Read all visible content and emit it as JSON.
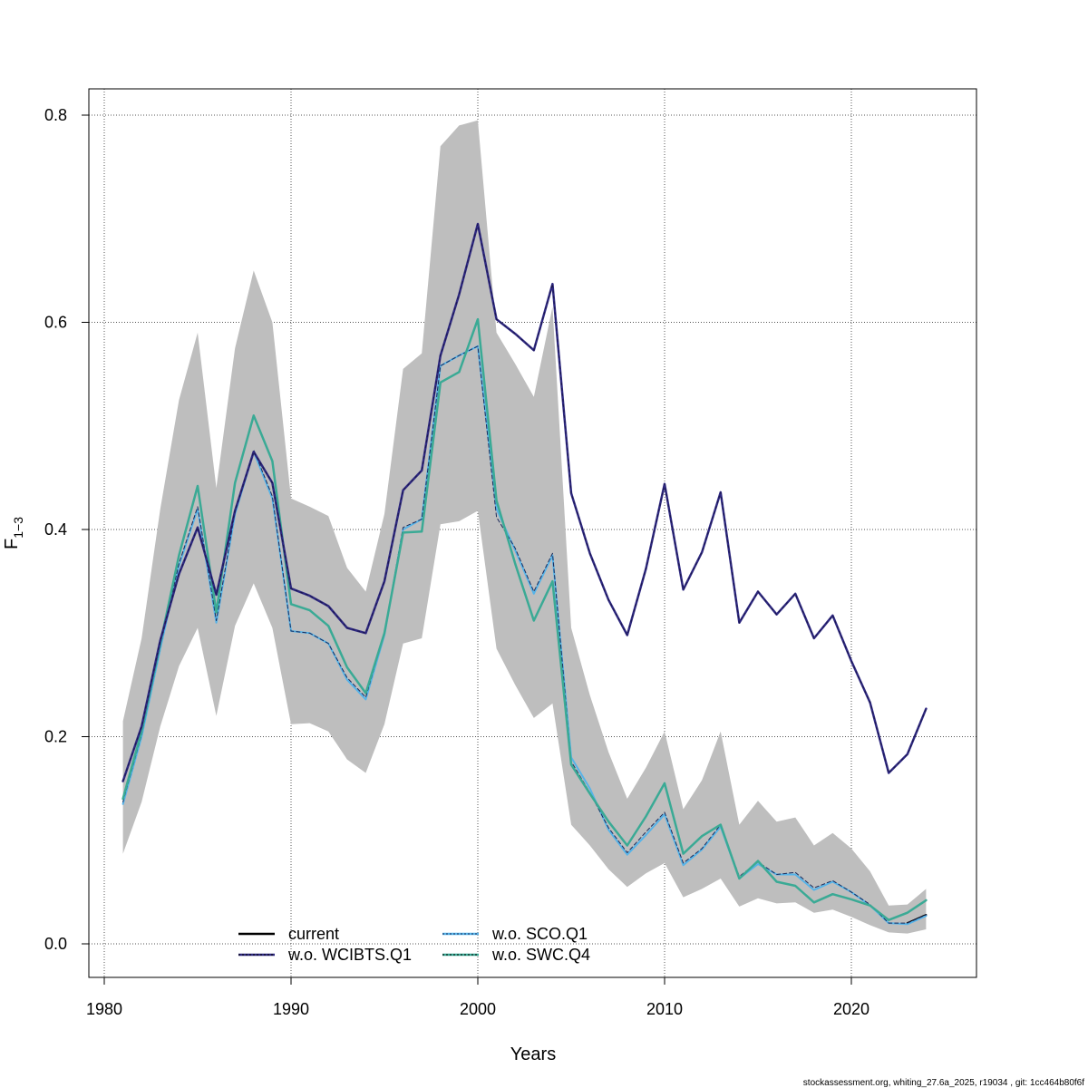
{
  "chart_data": {
    "type": "line",
    "xlabel": "Years",
    "ylabel_main": "F",
    "ylabel_sub": "1−3",
    "xlim": [
      1980,
      2025
    ],
    "ylim": [
      0,
      0.8
    ],
    "x_ticks": [
      1980,
      1990,
      2000,
      2010,
      2020
    ],
    "y_ticks": [
      0.0,
      0.2,
      0.4,
      0.6,
      0.8
    ],
    "y_tick_labels": [
      "0.0",
      "0.2",
      "0.4",
      "0.6",
      "0.8"
    ],
    "grid": true,
    "legend_position": "bottom",
    "x": [
      1981,
      1982,
      1983,
      1984,
      1985,
      1986,
      1987,
      1988,
      1989,
      1990,
      1991,
      1992,
      1993,
      1994,
      1995,
      1996,
      1997,
      1998,
      1999,
      2000,
      2001,
      2002,
      2003,
      2004,
      2005,
      2006,
      2007,
      2008,
      2009,
      2010,
      2011,
      2012,
      2013,
      2014,
      2015,
      2016,
      2017,
      2018,
      2019,
      2020,
      2021,
      2022,
      2023,
      2024
    ],
    "band": {
      "color": "#bebebe",
      "upper": [
        0.215,
        0.295,
        0.42,
        0.525,
        0.59,
        0.44,
        0.575,
        0.65,
        0.6,
        0.43,
        0.422,
        0.413,
        0.363,
        0.34,
        0.415,
        0.555,
        0.57,
        0.77,
        0.79,
        0.795,
        0.59,
        0.56,
        0.528,
        0.615,
        0.305,
        0.24,
        0.185,
        0.14,
        0.17,
        0.205,
        0.13,
        0.158,
        0.205,
        0.115,
        0.138,
        0.118,
        0.122,
        0.095,
        0.107,
        0.092,
        0.07,
        0.037,
        0.038,
        0.053
      ],
      "lower": [
        0.087,
        0.137,
        0.21,
        0.268,
        0.305,
        0.22,
        0.307,
        0.348,
        0.305,
        0.212,
        0.213,
        0.205,
        0.178,
        0.165,
        0.212,
        0.29,
        0.295,
        0.405,
        0.408,
        0.418,
        0.285,
        0.25,
        0.218,
        0.232,
        0.115,
        0.095,
        0.072,
        0.055,
        0.068,
        0.078,
        0.045,
        0.053,
        0.063,
        0.036,
        0.044,
        0.039,
        0.04,
        0.03,
        0.033,
        0.026,
        0.018,
        0.011,
        0.01,
        0.014
      ]
    },
    "series": [
      {
        "name": "current",
        "color": "#000000",
        "dash": "",
        "width": 2,
        "x": [
          2023,
          2024
        ],
        "values": [
          0.02,
          0.028
        ]
      },
      {
        "name": "w.o. SCO.Q1",
        "color": "#56b4e9",
        "dash": "",
        "width": 2,
        "values": [
          0.135,
          0.2,
          0.285,
          0.365,
          0.42,
          0.31,
          0.415,
          0.475,
          0.43,
          0.302,
          0.3,
          0.29,
          0.255,
          0.236,
          0.298,
          0.4,
          0.41,
          0.558,
          0.568,
          0.577,
          0.42,
          0.38,
          0.338,
          0.375,
          0.18,
          0.15,
          0.11,
          0.086,
          0.105,
          0.125,
          0.076,
          0.091,
          0.113,
          0.063,
          0.077,
          0.067,
          0.067,
          0.052,
          0.06,
          0.05,
          0.037,
          0.02,
          0.019,
          0.027
        ]
      },
      {
        "name": "w.o. SCO.Q1 overlay",
        "color": "#1a2a5a",
        "dash": "4,3",
        "width": 1,
        "values": [
          0.137,
          0.202,
          0.287,
          0.367,
          0.422,
          0.312,
          0.417,
          0.477,
          0.432,
          0.302,
          0.3,
          0.29,
          0.257,
          0.238,
          0.3,
          0.402,
          0.41,
          0.558,
          0.568,
          0.577,
          0.412,
          0.382,
          0.34,
          0.377,
          0.176,
          0.146,
          0.112,
          0.088,
          0.108,
          0.127,
          0.078,
          0.092,
          0.115,
          0.065,
          0.079,
          0.067,
          0.069,
          0.054,
          0.061,
          0.05,
          0.038,
          0.02,
          0.02,
          0.028
        ]
      },
      {
        "name": "w.o. SWC.Q4",
        "color": "#3aaa95",
        "dash": "",
        "width": 2.5,
        "values": [
          0.14,
          0.205,
          0.29,
          0.375,
          0.442,
          0.32,
          0.445,
          0.51,
          0.466,
          0.328,
          0.322,
          0.307,
          0.267,
          0.242,
          0.3,
          0.397,
          0.398,
          0.542,
          0.552,
          0.603,
          0.428,
          0.367,
          0.312,
          0.35,
          0.173,
          0.145,
          0.118,
          0.095,
          0.123,
          0.155,
          0.087,
          0.104,
          0.115,
          0.063,
          0.08,
          0.06,
          0.056,
          0.04,
          0.048,
          0.043,
          0.037,
          0.023,
          0.03,
          0.042
        ]
      },
      {
        "name": "w.o. WCIBTS.Q1",
        "color": "#2e2880",
        "dash": "",
        "width": 2.5,
        "values": [
          0.157,
          0.21,
          0.293,
          0.357,
          0.402,
          0.337,
          0.418,
          0.475,
          0.445,
          0.343,
          0.336,
          0.326,
          0.305,
          0.3,
          0.35,
          0.438,
          0.457,
          0.568,
          0.627,
          0.695,
          0.603,
          0.589,
          0.573,
          0.637,
          0.435,
          0.377,
          0.332,
          0.298,
          0.362,
          0.444,
          0.342,
          0.378,
          0.436,
          0.31,
          0.34,
          0.318,
          0.338,
          0.295,
          0.317,
          0.273,
          0.233,
          0.165,
          0.183,
          0.227
        ]
      }
    ],
    "legend": [
      {
        "label": "current",
        "color": "#000000",
        "overlay": ""
      },
      {
        "label": "w.o. WCIBTS.Q1",
        "color": "#2e2880",
        "overlay": "#000000"
      },
      {
        "label": "w.o. SCO.Q1",
        "color": "#56b4e9",
        "overlay": "#1a2a5a"
      },
      {
        "label": "w.o. SWC.Q4",
        "color": "#3aaa95",
        "overlay": "#000000"
      }
    ]
  },
  "footer": {
    "note": "stockassessment.org, whiting_27.6a_2025, r19034 , git: 1cc464b80f6f"
  }
}
